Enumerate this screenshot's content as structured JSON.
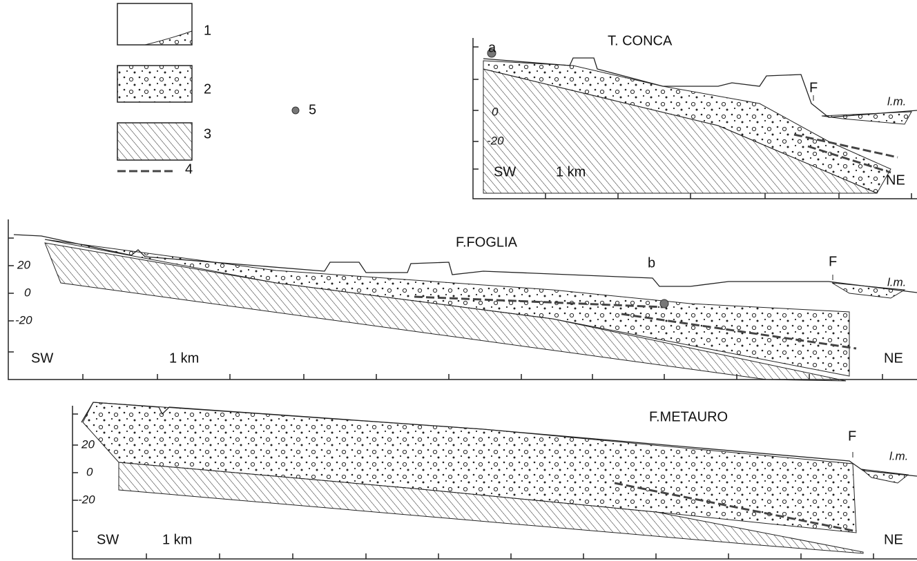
{
  "legend": [
    {
      "label": "1"
    },
    {
      "label": "2"
    },
    {
      "label": "3"
    },
    {
      "label": "4"
    },
    {
      "label": "5"
    }
  ],
  "sections": [
    {
      "title": "T. CONCA",
      "y_labels": [
        "0",
        "-20"
      ],
      "marker": "a",
      "fault": "F",
      "sea_level": "l.m.",
      "left": "SW",
      "scale": "1 km",
      "right": "NE"
    },
    {
      "title": "F.FOGLIA",
      "y_labels": [
        "20",
        "0",
        "-20"
      ],
      "marker": "b",
      "fault": "F",
      "sea_level": "l.m.",
      "left": "SW",
      "scale": "1 km",
      "right": "NE"
    },
    {
      "title": "F.METAURO",
      "y_labels": [
        "20",
        "0",
        "-20"
      ],
      "fault": "F",
      "sea_level": "l.m.",
      "left": "SW",
      "scale": "1 km",
      "right": "NE"
    }
  ]
}
